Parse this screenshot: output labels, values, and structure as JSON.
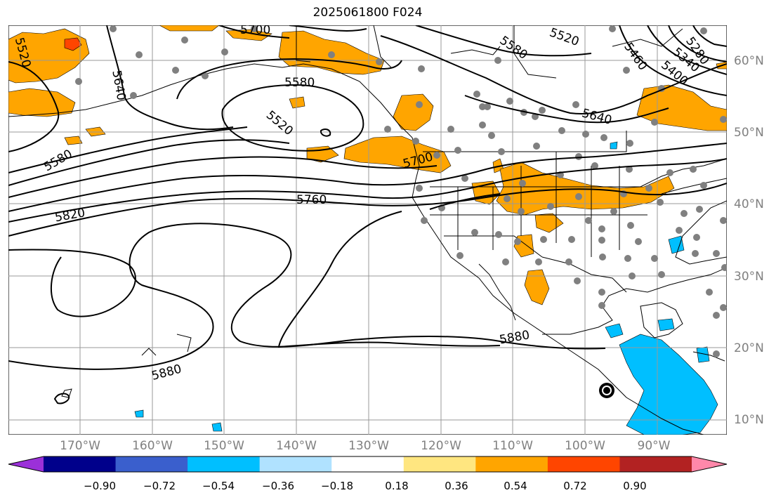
{
  "title": "2025061800 F024",
  "latitude_labels": [
    "60°N",
    "50°N",
    "40°N",
    "30°N",
    "20°N",
    "10°N"
  ],
  "longitude_labels": [
    "170°W",
    "160°W",
    "150°W",
    "140°W",
    "130°W",
    "120°W",
    "110°W",
    "100°W",
    "90°W"
  ],
  "contour_labels": {
    "c5700_top": "5700",
    "c5520_left": "5520",
    "c5640_left": "5640",
    "c5580_top": "5580",
    "c5520_mid": "5520",
    "c5580_left": "5580",
    "c5820": "5820",
    "c5760": "5760",
    "c5700_coast": "5700",
    "c5880_low": "5880",
    "c5880_mid": "5880",
    "c5580_ne": "5580",
    "c5520_ne": "5520",
    "c5460": "5460",
    "c5400": "5400",
    "c5340": "5340",
    "c5280": "5280",
    "c5640_ne": "5640"
  },
  "colorbar": {
    "labels": [
      "−0.90",
      "−0.72",
      "−0.54",
      "−0.36",
      "−0.18",
      "0.18",
      "0.36",
      "0.54",
      "0.72",
      "0.90"
    ],
    "colors": [
      "#9b30d9",
      "#00008b",
      "#3a5fcd",
      "#00bfff",
      "#b0e2ff",
      "#ffffff",
      "#ffe680",
      "#ffa500",
      "#ff4500",
      "#b22222",
      "#ff88aa"
    ]
  },
  "fill_colors": {
    "orange": "#ffa500",
    "red": "#ff4500",
    "cyan": "#00bfff",
    "station": "#808080"
  }
}
